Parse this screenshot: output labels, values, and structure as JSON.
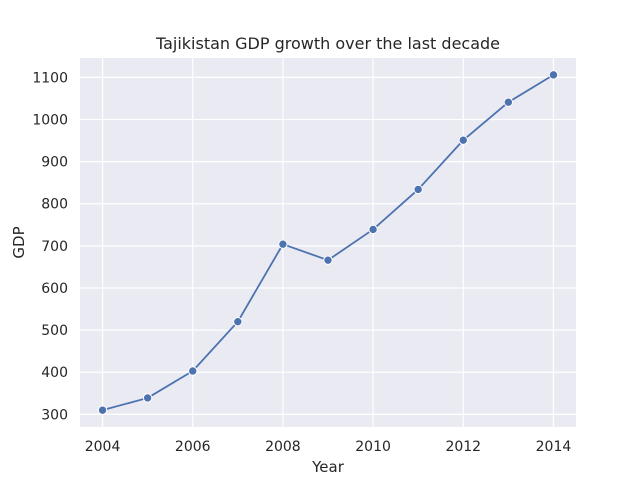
{
  "chart_data": {
    "type": "line",
    "title": "Tajikistan GDP growth over the last decade",
    "xlabel": "Year",
    "ylabel": "GDP",
    "x": [
      2004,
      2005,
      2006,
      2007,
      2008,
      2009,
      2010,
      2011,
      2012,
      2013,
      2014
    ],
    "series": [
      {
        "values": [
          310,
          339,
          403,
          520,
          704,
          666,
          739,
          834,
          951,
          1041,
          1106
        ]
      }
    ],
    "x_ticks": [
      2004,
      2006,
      2008,
      2010,
      2012,
      2014
    ],
    "y_ticks": [
      300,
      400,
      500,
      600,
      700,
      800,
      900,
      1000,
      1100
    ],
    "xlim": [
      2003.5,
      2014.5
    ],
    "ylim": [
      270,
      1146
    ],
    "grid": true,
    "colors": {
      "plot_background": "#eaeaf2",
      "grid": "#ffffff",
      "line": "#4c72b0",
      "marker_edge": "#ffffff",
      "text": "#262626"
    }
  }
}
